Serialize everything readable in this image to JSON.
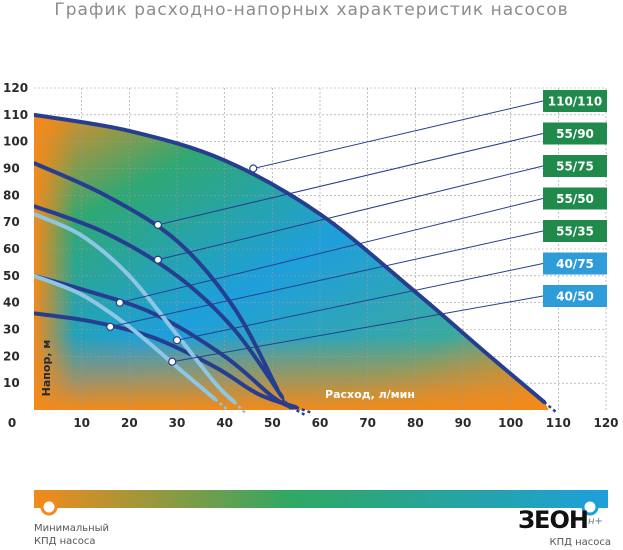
{
  "title": "График расходно-напорных характеристик насосов",
  "scale": {
    "min_label": [
      "Минимальный",
      "КПД насоса"
    ],
    "max_label": "КПД насоса",
    "min_color": "#f28a1c",
    "max_color": "#1e9fdc"
  },
  "brand": {
    "word": "ЗЕОН",
    "sub": "н+"
  },
  "colors": {
    "curve": "#263e8f",
    "curve_light": "#8ec7e6",
    "legend_green": "#1f8a4c",
    "legend_blue": "#2d9cd8",
    "grid": "#9a9a9a",
    "axis_label": "#f28a1c"
  },
  "chart_data": {
    "type": "line",
    "xlabel": "Расход, л/мин",
    "ylabel": "Напор, м",
    "xlim": [
      0,
      120
    ],
    "ylim": [
      0,
      120
    ],
    "xticks": [
      0,
      10,
      20,
      30,
      40,
      50,
      60,
      70,
      80,
      90,
      100,
      110,
      120
    ],
    "yticks": [
      10,
      20,
      30,
      40,
      50,
      60,
      70,
      80,
      90,
      100,
      110,
      120
    ],
    "grid": true,
    "legend_position": "right",
    "series": [
      {
        "name": "110/110",
        "style": "dark",
        "legend_color": "green",
        "x": [
          0,
          20,
          40,
          60,
          80,
          95,
          107
        ],
        "y": [
          110,
          104,
          93,
          73,
          44,
          21,
          3
        ],
        "marker": [
          46,
          90
        ]
      },
      {
        "name": "55/90",
        "style": "dark",
        "legend_color": "green",
        "x": [
          0,
          15,
          30,
          42,
          51
        ],
        "y": [
          92,
          80,
          63,
          38,
          8
        ],
        "marker": [
          26,
          69
        ]
      },
      {
        "name": "55/75",
        "style": "dark",
        "legend_color": "green",
        "x": [
          0,
          15,
          30,
          42,
          52
        ],
        "y": [
          76,
          66,
          50,
          30,
          5
        ],
        "marker": [
          26,
          56
        ]
      },
      {
        "name": "55/50",
        "style": "dark",
        "legend_color": "green",
        "x": [
          0,
          10,
          25,
          40,
          50,
          54
        ],
        "y": [
          50,
          45,
          36,
          20,
          5,
          1
        ],
        "marker": [
          18,
          40
        ]
      },
      {
        "name": "55/35",
        "style": "dark",
        "legend_color": "green",
        "x": [
          0,
          12,
          25,
          38,
          47,
          55
        ],
        "y": [
          36,
          33,
          27,
          16,
          6,
          1
        ],
        "marker": [
          16,
          31
        ]
      },
      {
        "name": "40/75",
        "style": "light",
        "legend_color": "blue",
        "x": [
          0,
          10,
          20,
          30,
          38,
          42
        ],
        "y": [
          73,
          65,
          50,
          28,
          10,
          3
        ],
        "marker": [
          30,
          26
        ]
      },
      {
        "name": "40/50",
        "style": "light",
        "legend_color": "blue",
        "x": [
          0,
          10,
          20,
          30,
          38
        ],
        "y": [
          50,
          43,
          31,
          16,
          4
        ],
        "marker": [
          29,
          18
        ]
      }
    ]
  }
}
